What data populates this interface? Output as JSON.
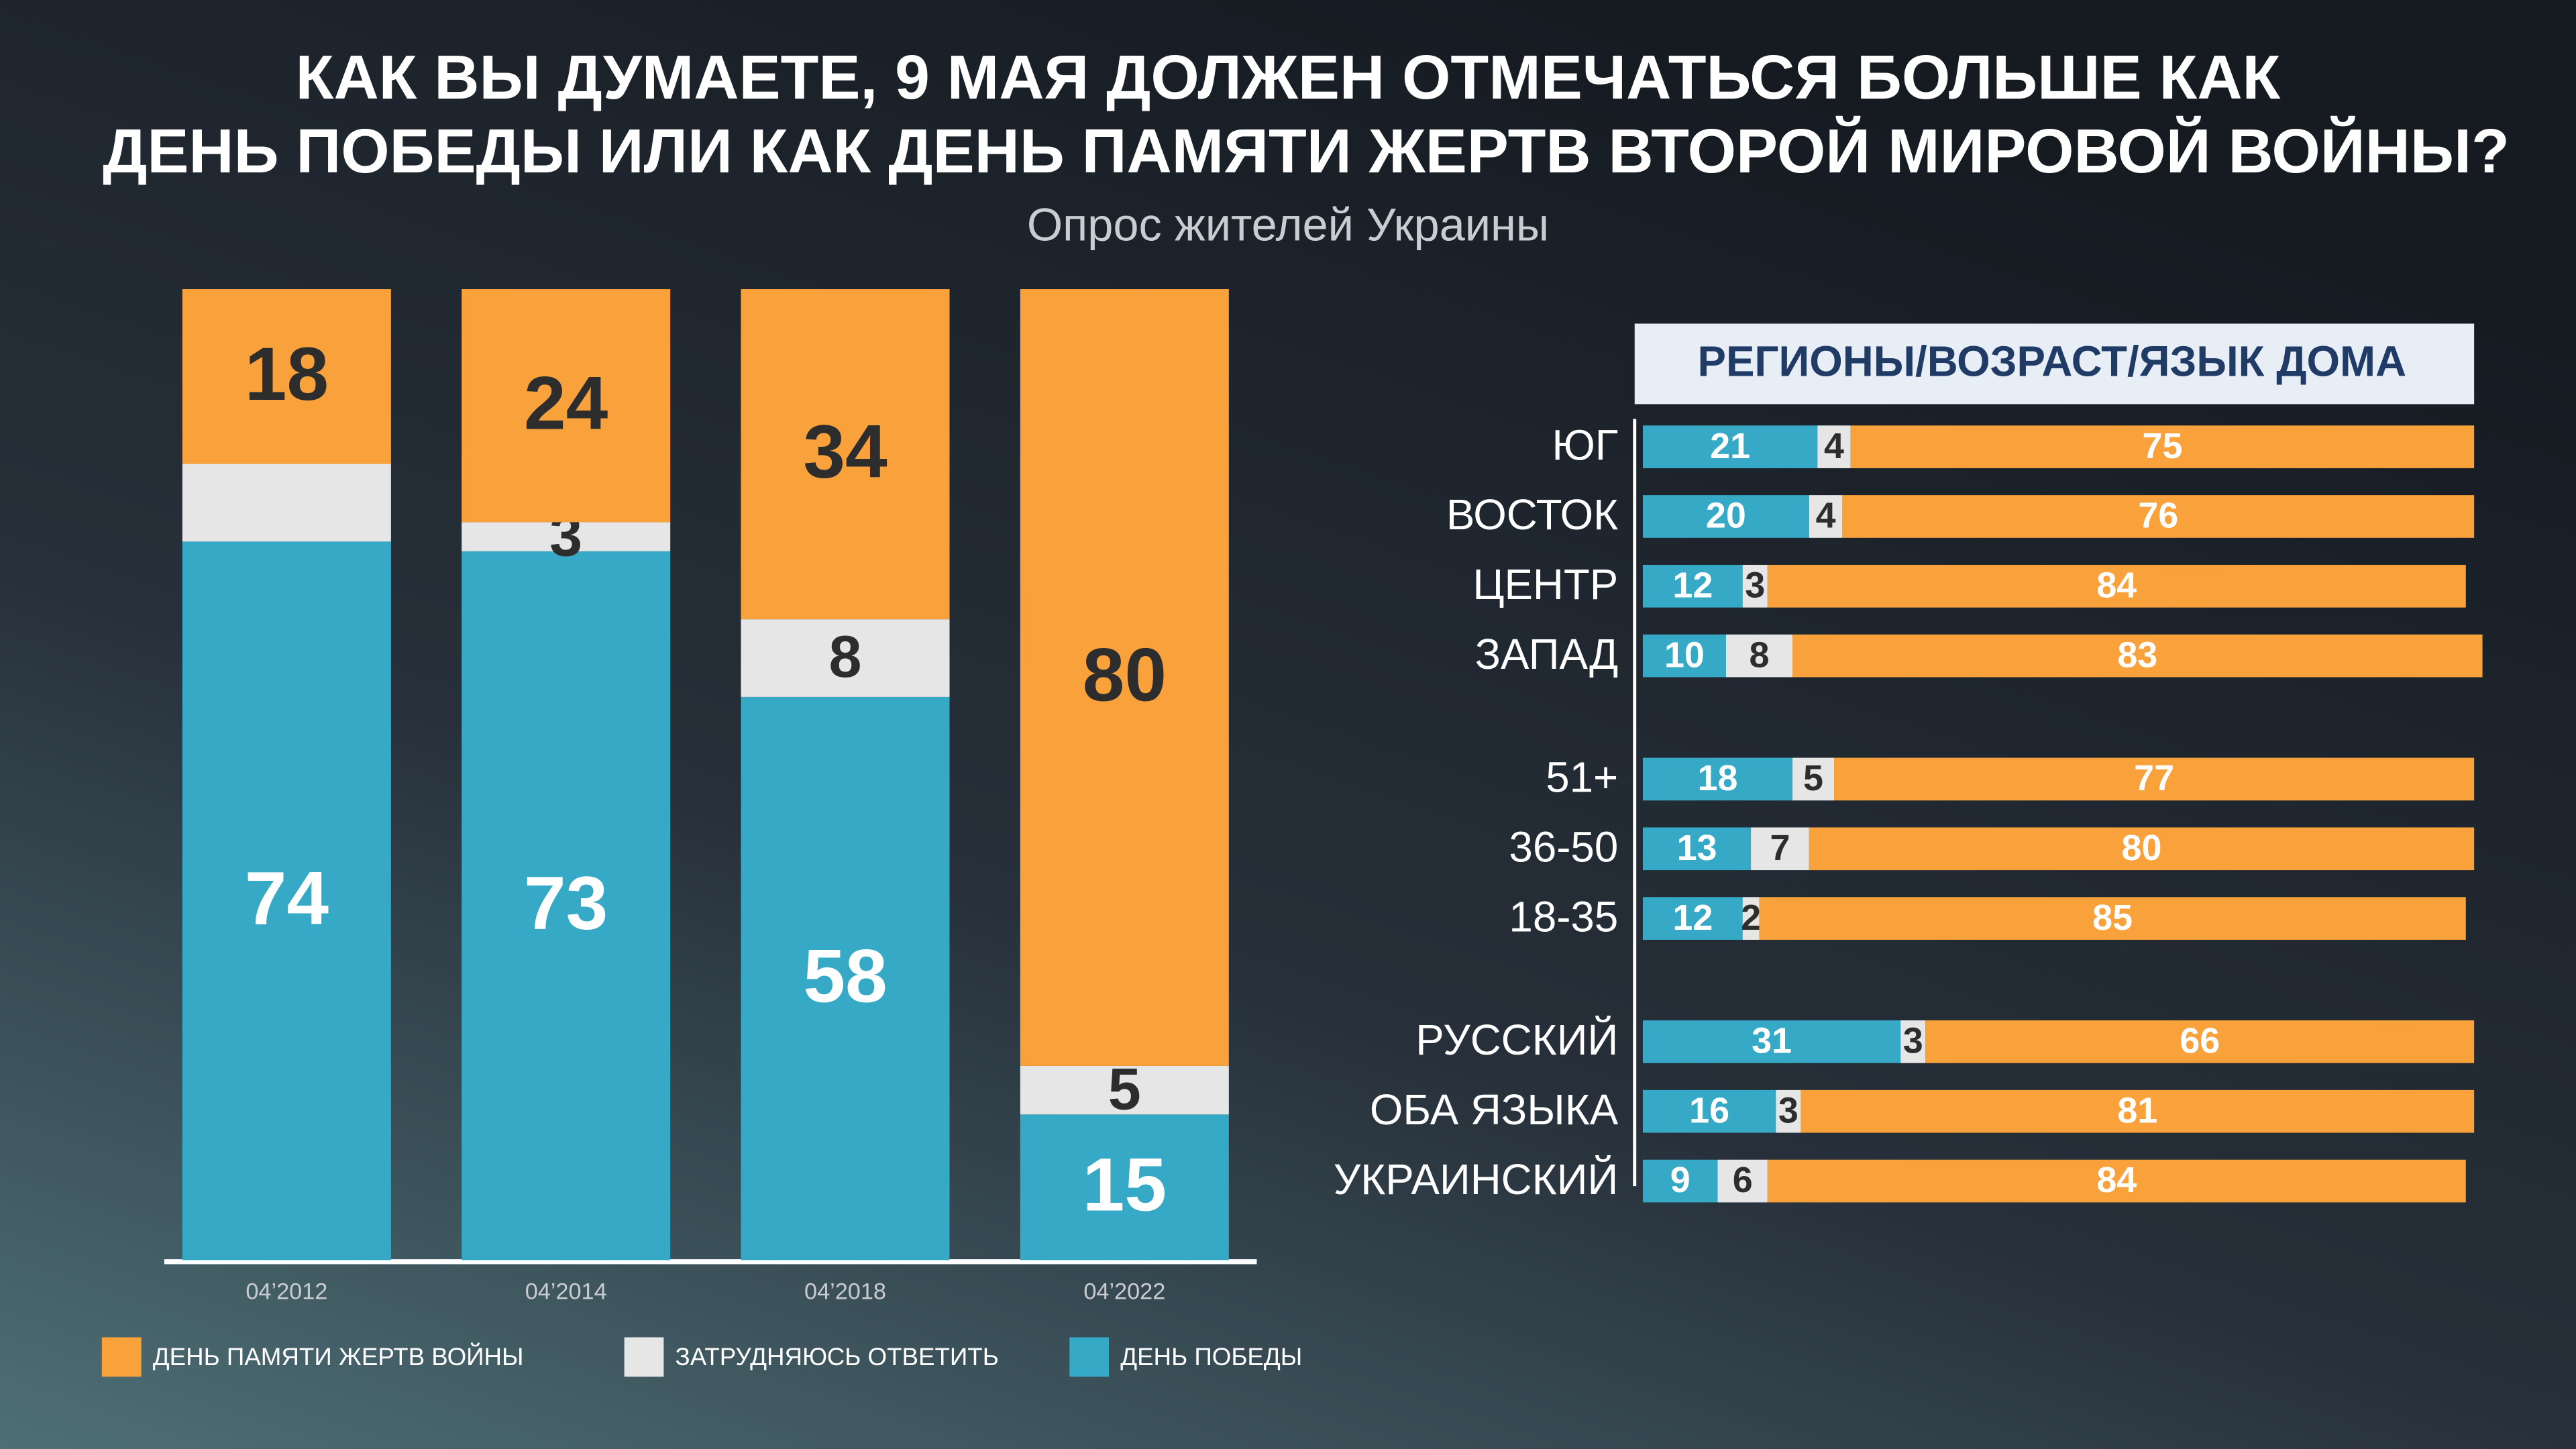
{
  "chart_data": [
    {
      "type": "bar",
      "title": [
        "КАК ВЫ ДУМАЕТЕ, 9 МАЯ ДОЛЖЕН ОТМЕЧАТЬСЯ БОЛЬШЕ КАК",
        "ДЕНЬ ПОБЕДЫ ИЛИ КАК ДЕНЬ ПАМЯТИ ЖЕРТВ ВТОРОЙ МИРОВОЙ ВОЙНЫ?"
      ],
      "subtitle": "Опрос жителей Украины",
      "categories": [
        "04’2012",
        "04’2014",
        "04’2018",
        "04’2022"
      ],
      "ylim": [
        0,
        100
      ],
      "series": [
        {
          "name": "ДЕНЬ ПОБЕДЫ",
          "color": "#36a9c6",
          "label_color": "#ffffff",
          "values": [
            74,
            73,
            58,
            15
          ]
        },
        {
          "name": "ЗАТРУДНЯЮСЬ ОТВЕТИТЬ",
          "color": "#e6e6e6",
          "label_color": "#2d2d2d",
          "values": [
            8,
            3,
            8,
            5
          ],
          "value_labels": [
            null,
            "3",
            "8",
            "5"
          ]
        },
        {
          "name": "ДЕНЬ ПАМЯТИ ЖЕРТВ ВОЙНЫ",
          "color": "#f9a13a",
          "label_color": "#2d2d2d",
          "values": [
            18,
            24,
            34,
            80
          ]
        }
      ]
    },
    {
      "type": "barh",
      "title": "РЕГИОНЫ/ВОЗРАСТ/ЯЗЫК ДОМА",
      "categories": [
        "ЮГ",
        "ВОСТОК",
        "ЦЕНТР",
        "ЗАПАД",
        null,
        "51+",
        "36-50",
        "18-35",
        null,
        "РУССКИЙ",
        "ОБА ЯЗЫКА",
        "УКРАИНСКИЙ"
      ],
      "xlim": [
        0,
        100
      ],
      "series": [
        {
          "color": "#36a9c6",
          "label_color": "#ffffff",
          "values": [
            21,
            20,
            12,
            10,
            null,
            18,
            13,
            12,
            null,
            31,
            16,
            9
          ]
        },
        {
          "color": "#e6e6e6",
          "label_color": "#2d2d2d",
          "values": [
            4,
            4,
            3,
            8,
            null,
            5,
            7,
            2,
            null,
            3,
            3,
            6
          ]
        },
        {
          "color": "#f9a13a",
          "label_color": "#ffffff",
          "values": [
            75,
            76,
            84,
            83,
            null,
            77,
            80,
            85,
            null,
            66,
            81,
            84
          ]
        }
      ]
    }
  ]
}
